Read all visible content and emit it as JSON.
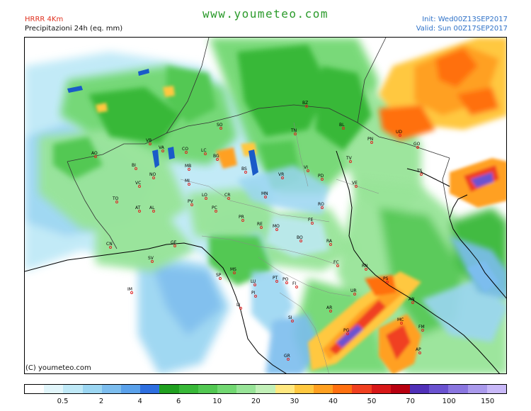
{
  "header": {
    "model": "HRRR 4Km",
    "product": "Precipitazioni 24h (eq. mm)",
    "site": "www.youmeteo.com",
    "init": "Init: Wed00Z13SEP2017",
    "valid": "Valid: Sun 00Z17SEP2017"
  },
  "map": {
    "copyright": "(C) youmeteo.com",
    "cities": [
      {
        "code": "BZ"
      },
      {
        "code": "SO"
      },
      {
        "code": "TN"
      },
      {
        "code": "BL"
      },
      {
        "code": "PN"
      },
      {
        "code": "UD"
      },
      {
        "code": "GO"
      },
      {
        "code": "VB"
      },
      {
        "code": "VA"
      },
      {
        "code": "CO"
      },
      {
        "code": "LC"
      },
      {
        "code": "BG"
      },
      {
        "code": "BS"
      },
      {
        "code": "VR"
      },
      {
        "code": "VI"
      },
      {
        "code": "TV"
      },
      {
        "code": "TS"
      },
      {
        "code": "AO"
      },
      {
        "code": "BI"
      },
      {
        "code": "NO"
      },
      {
        "code": "MB"
      },
      {
        "code": "MI"
      },
      {
        "code": "PD"
      },
      {
        "code": "VE"
      },
      {
        "code": "VC"
      },
      {
        "code": "CR"
      },
      {
        "code": "LO"
      },
      {
        "code": "MN"
      },
      {
        "code": "RO"
      },
      {
        "code": "TO"
      },
      {
        "code": "PV"
      },
      {
        "code": "PC"
      },
      {
        "code": "AT"
      },
      {
        "code": "AL"
      },
      {
        "code": "PR"
      },
      {
        "code": "RE"
      },
      {
        "code": "MO"
      },
      {
        "code": "FE"
      },
      {
        "code": "CN"
      },
      {
        "code": "GE"
      },
      {
        "code": "BO"
      },
      {
        "code": "RA"
      },
      {
        "code": "SV"
      },
      {
        "code": "SP"
      },
      {
        "code": "MS"
      },
      {
        "code": "FC"
      },
      {
        "code": "RN"
      },
      {
        "code": "PT"
      },
      {
        "code": "PO"
      },
      {
        "code": "LU"
      },
      {
        "code": "FI"
      },
      {
        "code": "PS"
      },
      {
        "code": "PI"
      },
      {
        "code": "IM"
      },
      {
        "code": "LI"
      },
      {
        "code": "AR"
      },
      {
        "code": "UR"
      },
      {
        "code": "AN"
      },
      {
        "code": "SI"
      },
      {
        "code": "MC"
      },
      {
        "code": "PG"
      },
      {
        "code": "FM"
      },
      {
        "code": "GR"
      },
      {
        "code": "AP"
      }
    ]
  },
  "legend": {
    "unit": "eq. mm",
    "colors": [
      "#ffffff",
      "#e2f6fb",
      "#bfe9f7",
      "#9bd6f2",
      "#7cbdee",
      "#5aa1eb",
      "#2e6fe0",
      "#20a020",
      "#38b838",
      "#52c852",
      "#72d872",
      "#98e498",
      "#c2f0b8",
      "#ffe880",
      "#ffc840",
      "#ffa020",
      "#ff7010",
      "#f04020",
      "#d81818",
      "#b80010",
      "#5030b8",
      "#6a52d0",
      "#8a76e0",
      "#aa9aec",
      "#c8b8f8"
    ],
    "labels": [
      {
        "text": "0.5",
        "boundary": 2
      },
      {
        "text": "2",
        "boundary": 4
      },
      {
        "text": "4",
        "boundary": 6
      },
      {
        "text": "6",
        "boundary": 8
      },
      {
        "text": "10",
        "boundary": 10
      },
      {
        "text": "20",
        "boundary": 12
      },
      {
        "text": "30",
        "boundary": 14
      },
      {
        "text": "40",
        "boundary": 16
      },
      {
        "text": "50",
        "boundary": 18
      },
      {
        "text": "70",
        "boundary": 20
      },
      {
        "text": "100",
        "boundary": 22
      },
      {
        "text": "150",
        "boundary": 24
      }
    ]
  }
}
